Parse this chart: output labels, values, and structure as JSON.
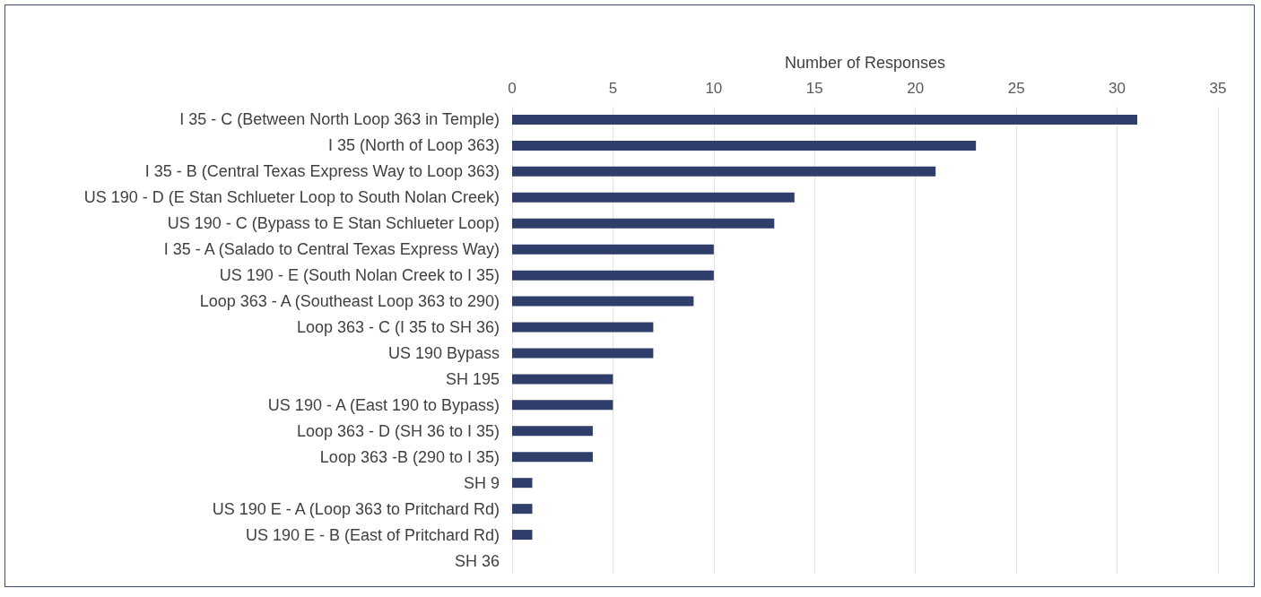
{
  "chart_data": {
    "type": "bar",
    "orientation": "horizontal",
    "xlabel": "Number of Responses",
    "categories": [
      "I 35 - C (Between North Loop 363 in Temple)",
      "I 35 (North of Loop 363)",
      "I 35 - B (Central Texas Express Way to Loop 363)",
      "US 190 - D (E Stan Schlueter Loop to South Nolan Creek)",
      "US 190 - C (Bypass to E Stan Schlueter Loop)",
      "I 35 - A (Salado to Central Texas Express Way)",
      "US 190 - E (South Nolan Creek to I 35)",
      "Loop 363 - A (Southeast Loop 363 to 290)",
      "Loop 363 - C (I 35 to SH 36)",
      "US 190 Bypass",
      "SH 195",
      "US 190 - A (East 190 to Bypass)",
      "Loop 363 - D (SH 36 to I 35)",
      "Loop 363 -B (290 to I 35)",
      "SH 9",
      "US 190 E - A (Loop 363 to Pritchard Rd)",
      "US 190 E - B (East of Pritchard Rd)",
      "SH 36"
    ],
    "values": [
      31,
      23,
      21,
      14,
      13,
      10,
      10,
      9,
      7,
      7,
      5,
      5,
      4,
      4,
      1,
      1,
      1,
      0
    ],
    "color": "#2f3e6b",
    "xlim": [
      0,
      35
    ],
    "xticks": [
      0,
      5,
      10,
      15,
      20,
      25,
      30,
      35
    ],
    "grid": "x"
  }
}
